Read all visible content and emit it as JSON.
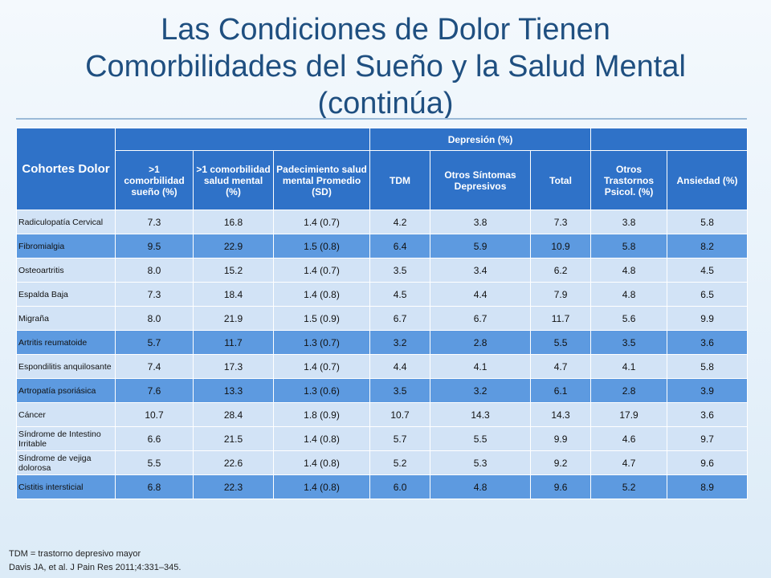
{
  "header": {
    "title": [
      "Las Condiciones de Dolor Tienen",
      "Comorbilidades del Sueño y la Salud Mental",
      "(continúa)"
    ]
  },
  "table": {
    "corner": "Cohortes Dolor",
    "group": "Depresión (%)",
    "columns": [
      ">1 comorbilidad sueño (%)",
      ">1 comorbilidad salud mental (%)",
      "Padecimiento salud mental Promedio  (SD)",
      "TDM",
      "Otros Síntomas Depresivos",
      "Total",
      "Otros Trastornos Psicol. (%)",
      "Ansiedad (%)"
    ],
    "rows": [
      [
        "Radiculopatía Cervical",
        "7.3",
        "16.8",
        "1.4 (0.7)",
        "4.2",
        "3.8",
        "7.3",
        "3.8",
        "5.8"
      ],
      [
        "Fibromialgia",
        "9.5",
        "22.9",
        "1.5 (0.8)",
        "6.4",
        "5.9",
        "10.9",
        "5.8",
        "8.2"
      ],
      [
        "Osteoartritis",
        "8.0",
        "15.2",
        "1.4 (0.7)",
        "3.5",
        "3.4",
        "6.2",
        "4.8",
        "4.5"
      ],
      [
        "Espalda Baja",
        "7.3",
        "18.4",
        "1.4 (0.8)",
        "4.5",
        "4.4",
        "7.9",
        "4.8",
        "6.5"
      ],
      [
        "Migraña",
        "8.0",
        "21.9",
        "1.5 (0.9)",
        "6.7",
        "6.7",
        "11.7",
        "5.6",
        "9.9"
      ],
      [
        "Artritis reumatoide",
        "5.7",
        "11.7",
        "1.3 (0.7)",
        "3.2",
        "2.8",
        "5.5",
        "3.5",
        "3.6"
      ],
      [
        "Espondilitis anquilosante",
        "7.4",
        "17.3",
        "1.4 (0.7)",
        "4.4",
        "4.1",
        "4.7",
        "4.1",
        "5.8"
      ],
      [
        "Artropatía psoriásica",
        "7.6",
        "13.3",
        "1.3 (0.6)",
        "3.5",
        "3.2",
        "6.1",
        "2.8",
        "3.9"
      ],
      [
        "Cáncer",
        "10.7",
        "28.4",
        "1.8 (0.9)",
        "10.7",
        "14.3",
        "14.3",
        "17.9",
        "3.6"
      ],
      [
        "Síndrome de Intestino Irritable",
        "6.6",
        "21.5",
        "1.4 (0.8)",
        "5.7",
        "5.5",
        "9.9",
        "4.6",
        "9.7"
      ],
      [
        "Síndrome de vejiga dolorosa",
        "5.5",
        "22.6",
        "1.4 (0.8)",
        "5.2",
        "5.3",
        "9.2",
        "4.7",
        "9.6"
      ],
      [
        "Cistitis intersticial",
        "6.8",
        "22.3",
        "1.4 (0.8)",
        "6.0",
        "4.8",
        "9.6",
        "5.2",
        "8.9"
      ]
    ]
  },
  "footnotes": [
    "TDM = trastorno depresivo mayor",
    "Davis JA, et al. J Pain Res 2011;4:331–345."
  ]
}
